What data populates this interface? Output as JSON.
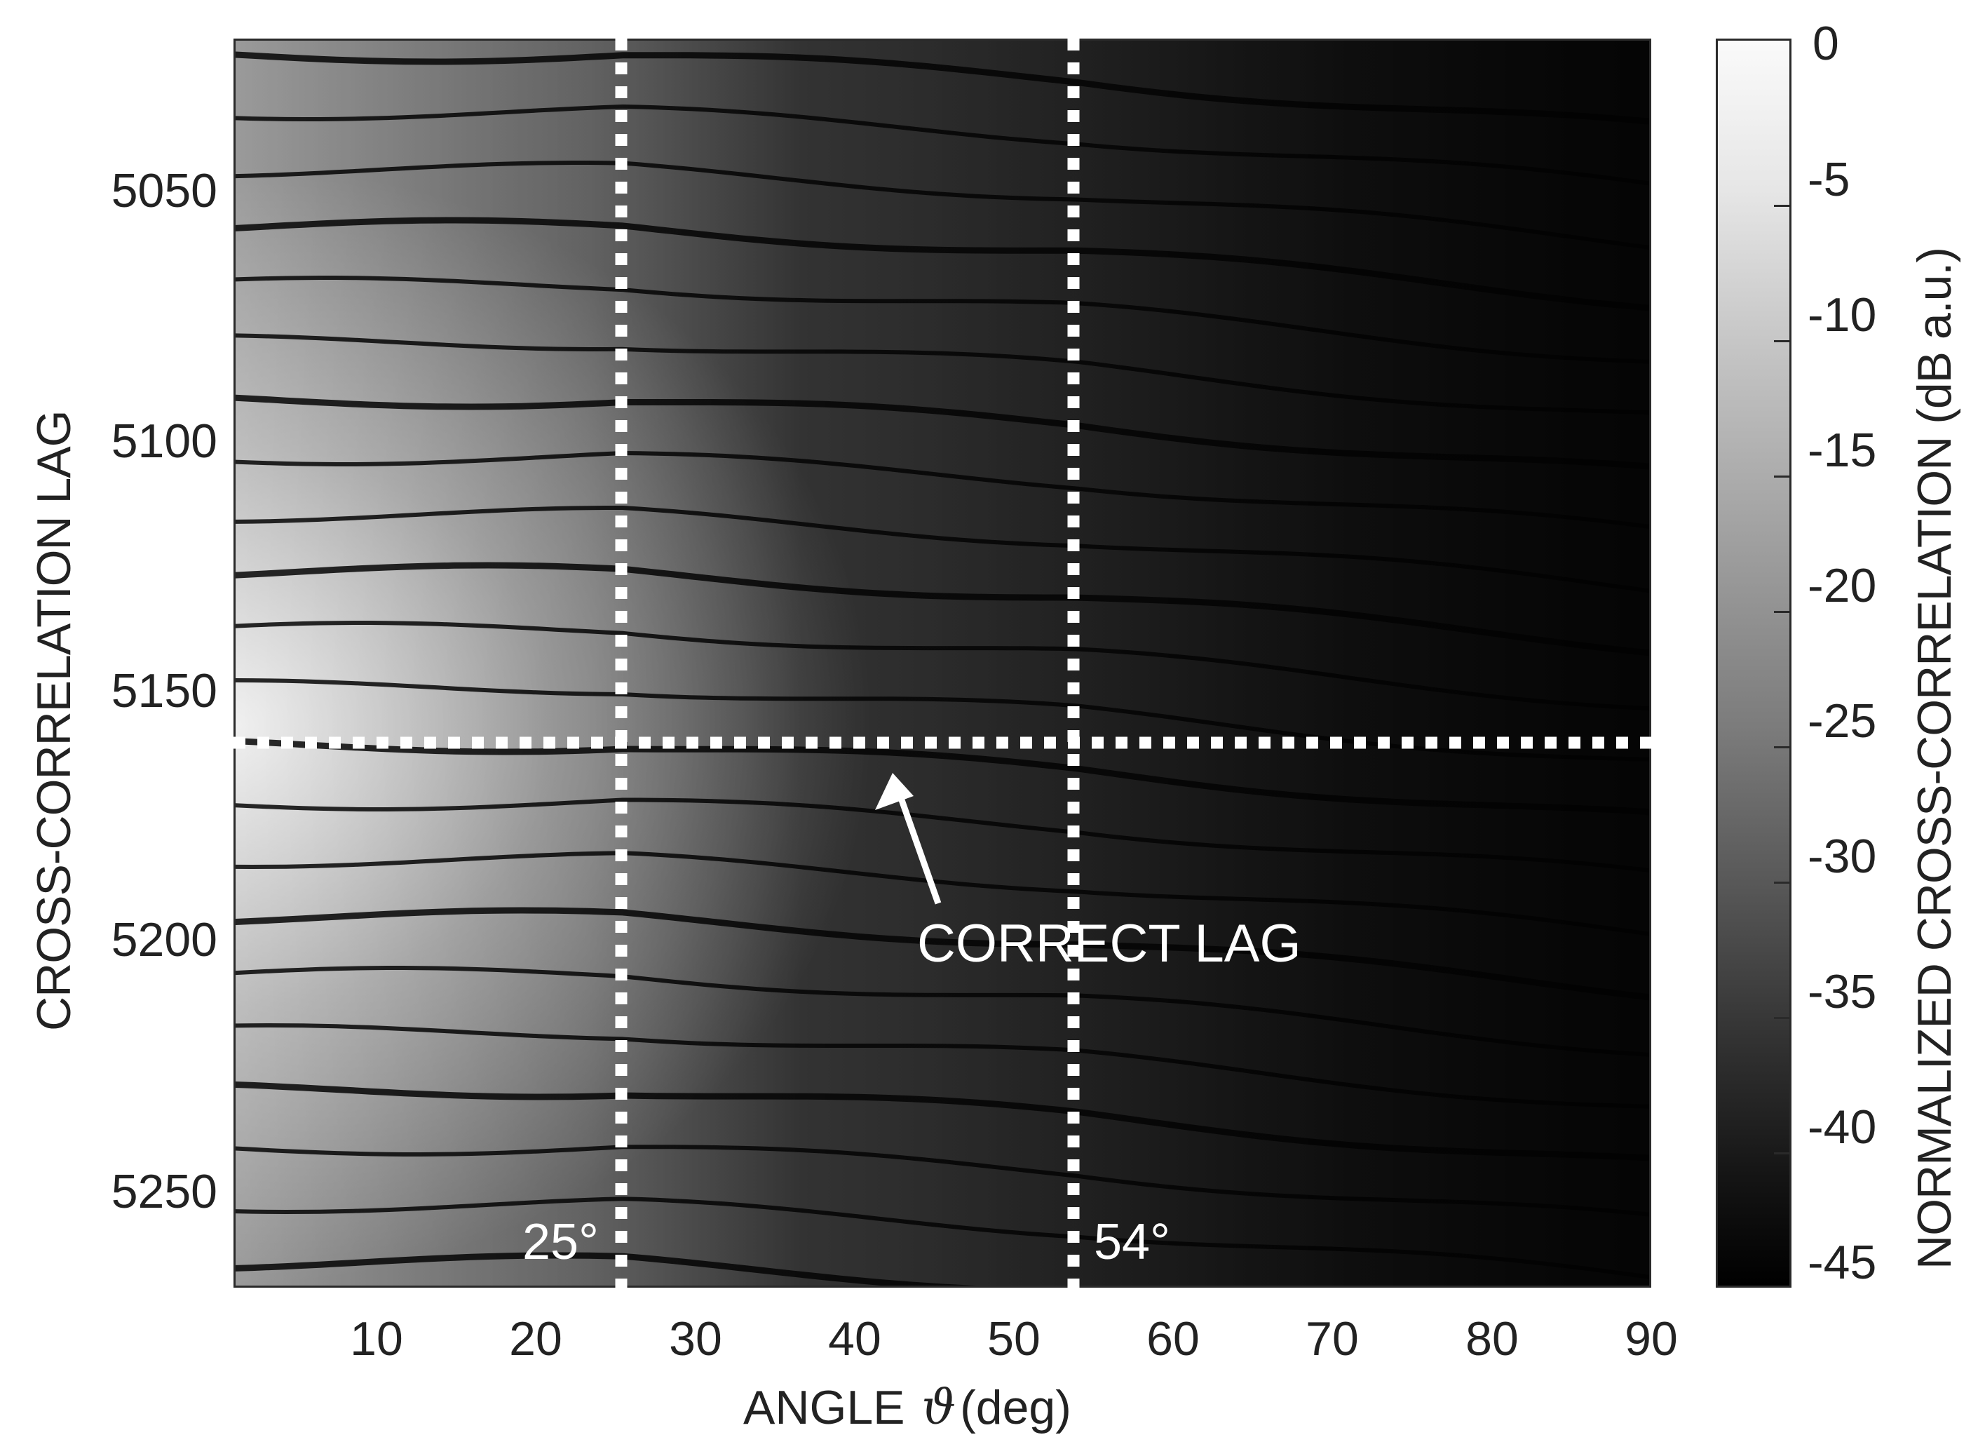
{
  "chart_data": {
    "type": "heatmap",
    "title": "",
    "xlabel": "ANGLE ϑ (deg)",
    "xlabel_parts": {
      "prefix": "ANGLE",
      "symbol": "ϑ",
      "suffix": "(deg)"
    },
    "ylabel": "CROSS-CORRELATION LAG",
    "colorbar_label": "NORMALIZED CROSS-CORRELATION (dB a.u.)",
    "xlim": [
      1,
      90
    ],
    "ylim": [
      5020,
      5272
    ],
    "y_reversed": true,
    "x_ticks": [
      10,
      20,
      30,
      40,
      50,
      60,
      70,
      80,
      90
    ],
    "y_ticks": [
      5050,
      5100,
      5150,
      5200,
      5250
    ],
    "colorbar_ticks": [
      0,
      -5,
      -10,
      -15,
      -20,
      -25,
      -30,
      -35,
      -40,
      -45
    ],
    "colorbar_range": [
      -46,
      0
    ],
    "colormap": "gray",
    "grid": false,
    "vertical_markers": [
      {
        "x": 25,
        "label": "25°",
        "style": "dotted",
        "color": "#ffffff"
      },
      {
        "x": 54,
        "label": "54°",
        "style": "dotted",
        "color": "#ffffff"
      }
    ],
    "horizontal_markers": [
      {
        "y": 5161,
        "style": "dotted",
        "color": "#ffffff"
      }
    ],
    "annotations": [
      {
        "text": "CORRECT LAG",
        "text_x": 44,
        "text_y": 5200,
        "arrow_to_x": 44,
        "arrow_to_y": 5166,
        "color": "#ffffff"
      }
    ],
    "description": "Striated cross-correlation fringes; brightest (near 0 dB) at low angles (<25°) around lags 5130-5190, darkening toward -45 dB at high angles (>60°). Fringes bend downward (increasing lag) with angle; a discontinuity near 25° and another near 54°."
  },
  "axes": {
    "x_tick_labels": [
      "10",
      "20",
      "30",
      "40",
      "50",
      "60",
      "70",
      "80",
      "90"
    ],
    "y_tick_labels": [
      "5050",
      "5100",
      "5150",
      "5200",
      "5250"
    ],
    "colorbar_tick_labels": [
      "0",
      "-5",
      "-10",
      "-15",
      "-20",
      "-25",
      "-30",
      "-35",
      "-40",
      "-45"
    ]
  },
  "labels": {
    "marker_25": "25°",
    "marker_54": "54°",
    "correct_lag": "CORRECT LAG"
  }
}
